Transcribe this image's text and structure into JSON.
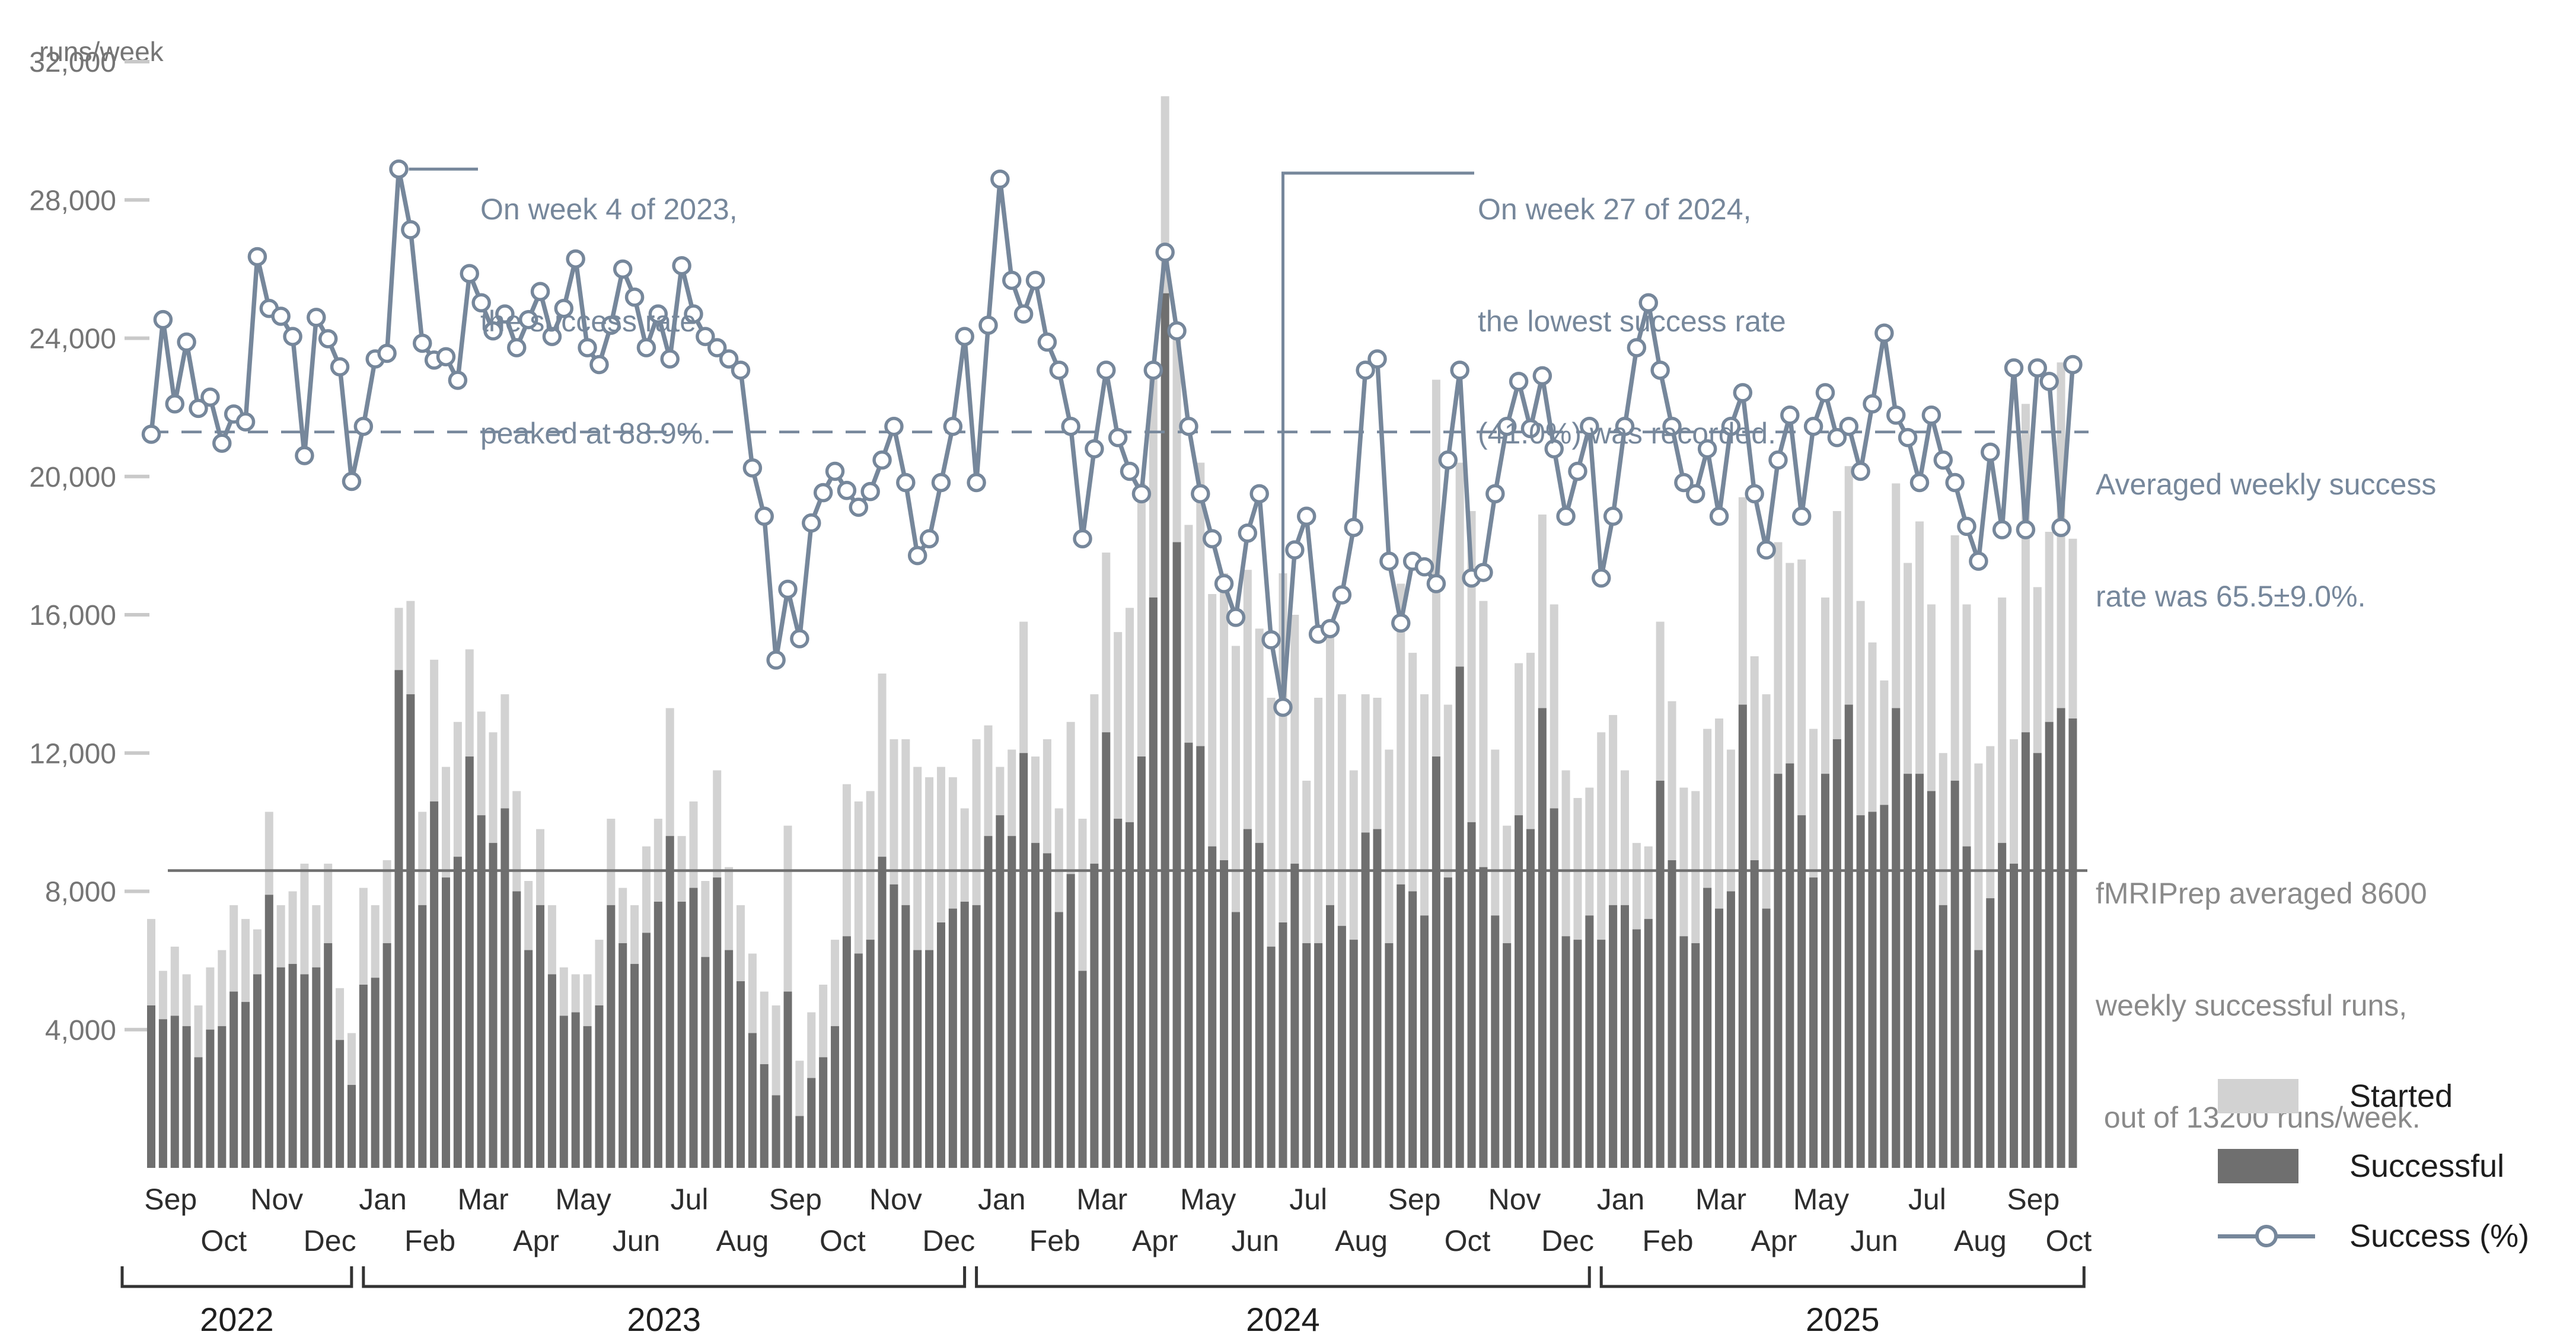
{
  "y_axis": {
    "unit_label": "runs/week",
    "tick_values": [
      32000,
      28000,
      24000,
      20000,
      16000,
      12000,
      8000,
      4000
    ],
    "tick_labels": [
      "32,000",
      "28,000",
      "24,000",
      "20,000",
      "16,000",
      "12,000",
      "8,000",
      "4,000"
    ],
    "min": 0,
    "max": 32000
  },
  "x_axis": {
    "months": [
      "Sep",
      "Oct",
      "Nov",
      "Dec",
      "Jan",
      "Feb",
      "Mar",
      "Apr",
      "May",
      "Jun",
      "Jul",
      "Aug",
      "Sep",
      "Oct",
      "Nov",
      "Dec",
      "Jan",
      "Feb",
      "Mar",
      "Apr",
      "May",
      "Jun",
      "Jul",
      "Aug",
      "Sep",
      "Oct",
      "Nov",
      "Dec",
      "Jan",
      "Feb",
      "Mar",
      "Apr",
      "May",
      "Jun",
      "Jul",
      "Aug",
      "Sep",
      "Oct"
    ],
    "month_weeks": [
      4,
      5,
      4,
      5,
      4,
      4,
      5,
      4,
      4,
      5,
      4,
      5,
      4,
      4,
      5,
      4,
      5,
      4,
      4,
      5,
      4,
      4,
      5,
      4,
      5,
      4,
      4,
      5,
      4,
      4,
      5,
      4,
      4,
      5,
      4,
      5,
      4,
      2
    ],
    "years": [
      {
        "label": "2022",
        "first_month": 0,
        "last_month": 3
      },
      {
        "label": "2023",
        "first_month": 4,
        "last_month": 15
      },
      {
        "label": "2024",
        "first_month": 16,
        "last_month": 27
      },
      {
        "label": "2025",
        "first_month": 28,
        "last_month": 37
      }
    ]
  },
  "legend": {
    "items": [
      {
        "label": "Started",
        "type": "bar-light"
      },
      {
        "label": "Successful",
        "type": "bar-dark"
      },
      {
        "label": "Success (%)",
        "type": "line"
      }
    ]
  },
  "annotations": {
    "peak": {
      "lines": [
        "On week 4 of 2023,",
        "the success rate",
        "peaked at 88.9%."
      ],
      "week_of_year": 4,
      "year": 2023,
      "value_pct": 88.9
    },
    "low": {
      "lines": [
        "On week 27 of 2024,",
        "the lowest success rate",
        "(41.0%) was recorded."
      ],
      "week_of_year": 27,
      "year": 2024,
      "value_pct": 41.0
    },
    "avg_rate": {
      "lines": [
        "Averaged weekly success",
        "rate was 65.5±9.0%."
      ],
      "mean_pct": 65.5,
      "sd_pct": 9.0
    },
    "avg_runs": {
      "lines": [
        "fMRIPrep averaged 8600",
        "weekly successful runs,",
        " out of 13200 runs/week."
      ],
      "mean_successful": 8600,
      "mean_started": 13200
    }
  },
  "colors": {
    "started_bar": "#d2d2d2",
    "successful_bar": "#6f6f6f",
    "success_line": "#76879B",
    "avg_dashed_line": "#76879B",
    "avg_solid_line": "#6f6f6f",
    "axis_text": "#757575",
    "tick_mark": "#c9c9c9",
    "month_text": "#2d2d2d",
    "year_text": "#1f1f1f",
    "annotation_gray": "#8a8a8a",
    "legend_text": "#1d1d1d"
  },
  "chart_data": {
    "type": "bar+line",
    "title": "",
    "x_unit": "week",
    "range": "Sep 2022 - Oct 2025",
    "n_weeks": 164,
    "ylabel": "runs/week",
    "ylim": [
      0,
      32000
    ],
    "grid": false,
    "legend_position": "bottom-right",
    "percent_line_scale_100pct_equals_runs": 32500,
    "avg_success_rate_pct": 65.5,
    "avg_success_rate_sd_pct": 9.0,
    "avg_successful_runs_per_week": 8600,
    "avg_started_runs_per_week": 13200,
    "peak": {
      "year": 2023,
      "week": 4,
      "pct": 88.9
    },
    "low": {
      "year": 2024,
      "week": 27,
      "pct": 41.0
    },
    "series": [
      {
        "name": "Started",
        "type": "bar",
        "values": [
          7200,
          5700,
          6400,
          5600,
          4700,
          5800,
          6300,
          7600,
          7200,
          6900,
          10300,
          7600,
          8000,
          8800,
          7600,
          8800,
          5200,
          3900,
          8100,
          7600,
          8900,
          16200,
          16400,
          10300,
          14700,
          11600,
          12900,
          15000,
          13200,
          12600,
          13700,
          10900,
          8300,
          9800,
          7600,
          5800,
          5600,
          5600,
          6600,
          10100,
          8100,
          7600,
          9300,
          10100,
          13300,
          9600,
          10600,
          8300,
          11500,
          8700,
          7600,
          6200,
          5100,
          4700,
          9900,
          3100,
          4500,
          5300,
          6600,
          11100,
          10600,
          10900,
          14300,
          12400,
          12400,
          11600,
          11300,
          11600,
          11300,
          10400,
          12400,
          12800,
          11600,
          12100,
          15800,
          11900,
          12400,
          10400,
          12900,
          10100,
          13700,
          17800,
          15500,
          16200,
          19800,
          23300,
          31000,
          24300,
          18600,
          20400,
          16600,
          17200,
          15100,
          17300,
          15600,
          13600,
          17200,
          16000,
          11200,
          13600,
          15800,
          13700,
          11500,
          13700,
          13600,
          12100,
          16900,
          14900,
          13700,
          22800,
          13400,
          20400,
          19000,
          16400,
          12100,
          9900,
          14600,
          14900,
          18900,
          16300,
          11500,
          10700,
          11000,
          12600,
          13100,
          11500,
          9400,
          9300,
          15800,
          13500,
          11000,
          10900,
          12700,
          13000,
          12100,
          19400,
          14800,
          13700,
          18100,
          17500,
          17600,
          12700,
          16500,
          19000,
          20300,
          16400,
          15200,
          14100,
          19800,
          17500,
          18700,
          16300,
          12000,
          18300,
          16300,
          11700,
          12200,
          16500,
          12400,
          22100,
          16800,
          18400,
          23300,
          18200
        ]
      },
      {
        "name": "Successful",
        "type": "bar",
        "values": [
          4700,
          4300,
          4400,
          4100,
          3200,
          4000,
          4100,
          5100,
          4800,
          5600,
          7900,
          5800,
          5900,
          5600,
          5800,
          6500,
          3700,
          2400,
          5300,
          5500,
          6500,
          14400,
          13700,
          7600,
          10600,
          8400,
          9000,
          11900,
          10200,
          9400,
          10400,
          8000,
          6300,
          7600,
          5600,
          4400,
          4500,
          4100,
          4700,
          7600,
          6500,
          5900,
          6800,
          7700,
          9600,
          7700,
          8100,
          6100,
          8400,
          6300,
          5400,
          3900,
          3000,
          2100,
          5100,
          1500,
          2600,
          3200,
          4100,
          6700,
          6200,
          6600,
          9000,
          8200,
          7600,
          6300,
          6300,
          7100,
          7500,
          7700,
          7600,
          9600,
          10200,
          9600,
          12000,
          9400,
          9100,
          7400,
          8500,
          5700,
          8800,
          12600,
          10100,
          10000,
          11900,
          16500,
          25300,
          18100,
          12300,
          12200,
          9300,
          8900,
          7400,
          9800,
          9400,
          6400,
          7100,
          8800,
          6500,
          6500,
          7600,
          7000,
          6600,
          9700,
          9800,
          6500,
          8200,
          8000,
          7300,
          11900,
          8400,
          14500,
          10000,
          8700,
          7300,
          6500,
          10200,
          9800,
          13300,
          10400,
          6700,
          6600,
          7300,
          6600,
          7600,
          7600,
          6900,
          7200,
          11200,
          8900,
          6700,
          6500,
          8100,
          7500,
          8000,
          13400,
          8900,
          7500,
          11400,
          11700,
          10200,
          8400,
          11400,
          12400,
          13400,
          10200,
          10300,
          10500,
          13300,
          11400,
          11400,
          10900,
          7600,
          11200,
          9300,
          6300,
          7800,
          9400,
          8800,
          12600,
          12000,
          12900,
          13300,
          13000
        ]
      },
      {
        "name": "Success (%)",
        "type": "line",
        "axis": "percent",
        "values": [
          65.3,
          75.5,
          68,
          73.5,
          67.6,
          68.6,
          64.5,
          67.1,
          66.4,
          81.1,
          76.5,
          75.8,
          74,
          63.4,
          75.7,
          73.8,
          71.3,
          61.1,
          66,
          72,
          72.5,
          88.9,
          83.5,
          73.4,
          71.9,
          72.2,
          70.1,
          79.6,
          77,
          74.5,
          76,
          73,
          75.5,
          78,
          74,
          76.5,
          80.9,
          73,
          71.5,
          75,
          80,
          77.5,
          73,
          76,
          72,
          80.3,
          76,
          74,
          73,
          72,
          71,
          62.3,
          58,
          45.2,
          51.5,
          47.1,
          57.4,
          60.1,
          62,
          60.3,
          58.8,
          60.2,
          63,
          66,
          61,
          54.5,
          56,
          61,
          66,
          74,
          61,
          75,
          88,
          79,
          76,
          79,
          73.5,
          71,
          66,
          56,
          64,
          71,
          65,
          62,
          60,
          71,
          81.5,
          74.5,
          66,
          60,
          56,
          52,
          49,
          56.5,
          60,
          47,
          41,
          55,
          58,
          47.5,
          48,
          51,
          57,
          71,
          72,
          54,
          48.5,
          54,
          53.5,
          52,
          63,
          71,
          52.5,
          53,
          60,
          66,
          70,
          65.8,
          70.5,
          64,
          58,
          62,
          66,
          52.5,
          58,
          66,
          73,
          77,
          71,
          66,
          61,
          60,
          64,
          58,
          66,
          69,
          60,
          55,
          63,
          67,
          58,
          66,
          69,
          65,
          66,
          62,
          68,
          74.3,
          67,
          65,
          61,
          67,
          63,
          61,
          57.1,
          54,
          63.7,
          56.8,
          71.2,
          56.8,
          71.2,
          70,
          57,
          71.5
        ]
      }
    ]
  }
}
